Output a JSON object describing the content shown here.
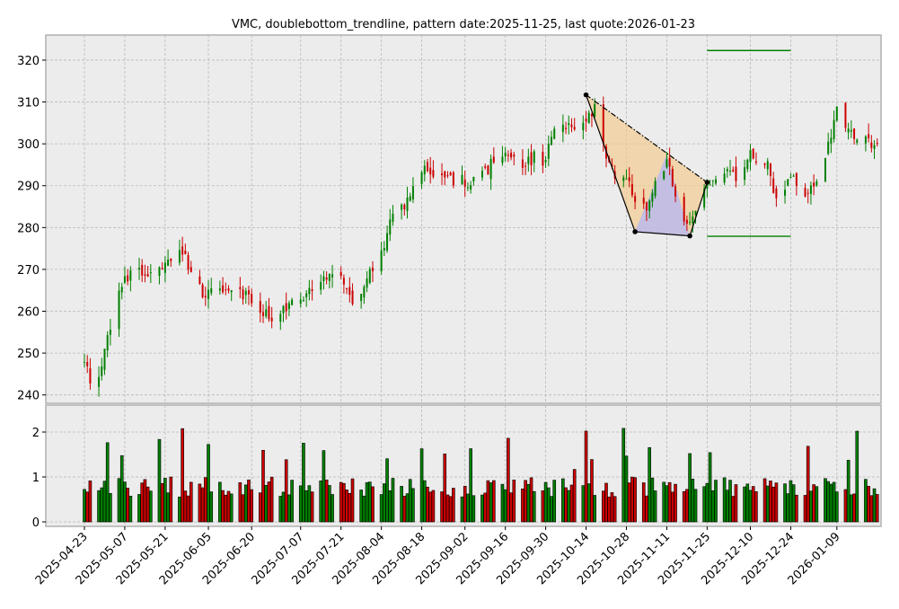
{
  "chart_data": {
    "type": "candlestick",
    "title": "VMC, doublebottom_trendline, pattern date:2025-11-25, last quote:2026-01-23",
    "price_axis": {
      "ylim": [
        238,
        326
      ],
      "ticks": [
        "240",
        "250",
        "260",
        "270",
        "280",
        "290",
        "300",
        "310",
        "320"
      ]
    },
    "volume_axis": {
      "ylim": [
        -0.1,
        2.6
      ],
      "ticks": [
        "0",
        "1",
        "2"
      ]
    },
    "date_ticks": [
      "2025-04-23",
      "2025-05-07",
      "2025-05-21",
      "2025-06-05",
      "2025-06-20",
      "2025-07-07",
      "2025-07-21",
      "2025-08-04",
      "2025-08-18",
      "2025-09-02",
      "2025-09-16",
      "2025-09-30",
      "2025-10-14",
      "2025-10-28",
      "2025-11-11",
      "2025-11-25",
      "2025-12-10",
      "2025-12-24",
      "2026-01-09"
    ],
    "date_range": [
      "2025-04-23",
      "2026-01-23"
    ],
    "grid": true,
    "colors": {
      "up": "#008000",
      "down": "#cc0000",
      "background": "#ececec",
      "pattern_fill": "#f5c98a",
      "inner_fill": "#b8b8f0",
      "level_line": "#008000"
    },
    "close_anchors": [
      [
        "2025-04-23",
        247
      ],
      [
        "2025-04-25",
        244
      ],
      [
        "2025-04-29",
        246
      ],
      [
        "2025-05-01",
        253
      ],
      [
        "2025-05-05",
        265
      ],
      [
        "2025-05-08",
        268
      ],
      [
        "2025-05-12",
        270
      ],
      [
        "2025-05-16",
        269
      ],
      [
        "2025-05-21",
        271
      ],
      [
        "2025-05-27",
        274
      ],
      [
        "2025-05-30",
        269
      ],
      [
        "2025-06-03",
        264
      ],
      [
        "2025-06-09",
        265
      ],
      [
        "2025-06-13",
        266
      ],
      [
        "2025-06-18",
        264
      ],
      [
        "2025-06-23",
        261
      ],
      [
        "2025-06-27",
        257
      ],
      [
        "2025-07-01",
        260
      ],
      [
        "2025-07-07",
        263
      ],
      [
        "2025-07-11",
        266
      ],
      [
        "2025-07-16",
        268
      ],
      [
        "2025-07-21",
        268
      ],
      [
        "2025-07-25",
        262
      ],
      [
        "2025-07-30",
        268
      ],
      [
        "2025-08-04",
        274
      ],
      [
        "2025-08-07",
        281
      ],
      [
        "2025-08-12",
        285
      ],
      [
        "2025-08-15",
        290
      ],
      [
        "2025-08-19",
        294
      ],
      [
        "2025-08-25",
        291
      ],
      [
        "2025-09-02",
        291
      ],
      [
        "2025-09-08",
        292
      ],
      [
        "2025-09-12",
        296
      ],
      [
        "2025-09-16",
        298
      ],
      [
        "2025-09-22",
        294
      ],
      [
        "2025-09-26",
        297
      ],
      [
        "2025-09-30",
        296
      ],
      [
        "2025-10-03",
        304
      ],
      [
        "2025-10-08",
        304
      ],
      [
        "2025-10-14",
        305
      ],
      [
        "2025-10-17",
        308
      ],
      [
        "2025-10-21",
        297
      ],
      [
        "2025-10-24",
        293
      ],
      [
        "2025-10-28",
        292
      ],
      [
        "2025-10-31",
        287
      ],
      [
        "2025-11-04",
        285
      ],
      [
        "2025-11-07",
        290
      ],
      [
        "2025-11-11",
        296
      ],
      [
        "2025-11-14",
        289
      ],
      [
        "2025-11-18",
        281
      ],
      [
        "2025-11-21",
        284
      ],
      [
        "2025-11-25",
        291
      ],
      [
        "2025-12-01",
        294
      ],
      [
        "2025-12-05",
        292
      ],
      [
        "2025-12-10",
        297
      ],
      [
        "2025-12-16",
        295
      ],
      [
        "2025-12-19",
        287
      ],
      [
        "2025-12-24",
        292
      ],
      [
        "2025-12-30",
        288
      ],
      [
        "2026-01-05",
        296
      ],
      [
        "2026-01-09",
        309
      ],
      [
        "2026-01-14",
        302
      ],
      [
        "2026-01-20",
        300
      ],
      [
        "2026-01-23",
        301
      ]
    ],
    "pattern": {
      "points": [
        {
          "date": "2025-10-14",
          "price": 311.7
        },
        {
          "date": "2025-10-31",
          "price": 279.0
        },
        {
          "date": "2025-11-19",
          "price": 278.0
        },
        {
          "date": "2025-11-25",
          "price": 290.8
        }
      ],
      "inner_triangle": [
        {
          "date": "2025-10-31",
          "price": 279.0
        },
        {
          "date": "2025-11-11",
          "price": 297.5
        },
        {
          "date": "2025-11-19",
          "price": 278.0
        }
      ],
      "resistance": {
        "price": 322.3,
        "from": "2025-11-25",
        "to": "2025-12-24"
      },
      "support": {
        "price": 277.9,
        "from": "2025-11-25",
        "to": "2025-12-24"
      }
    }
  }
}
